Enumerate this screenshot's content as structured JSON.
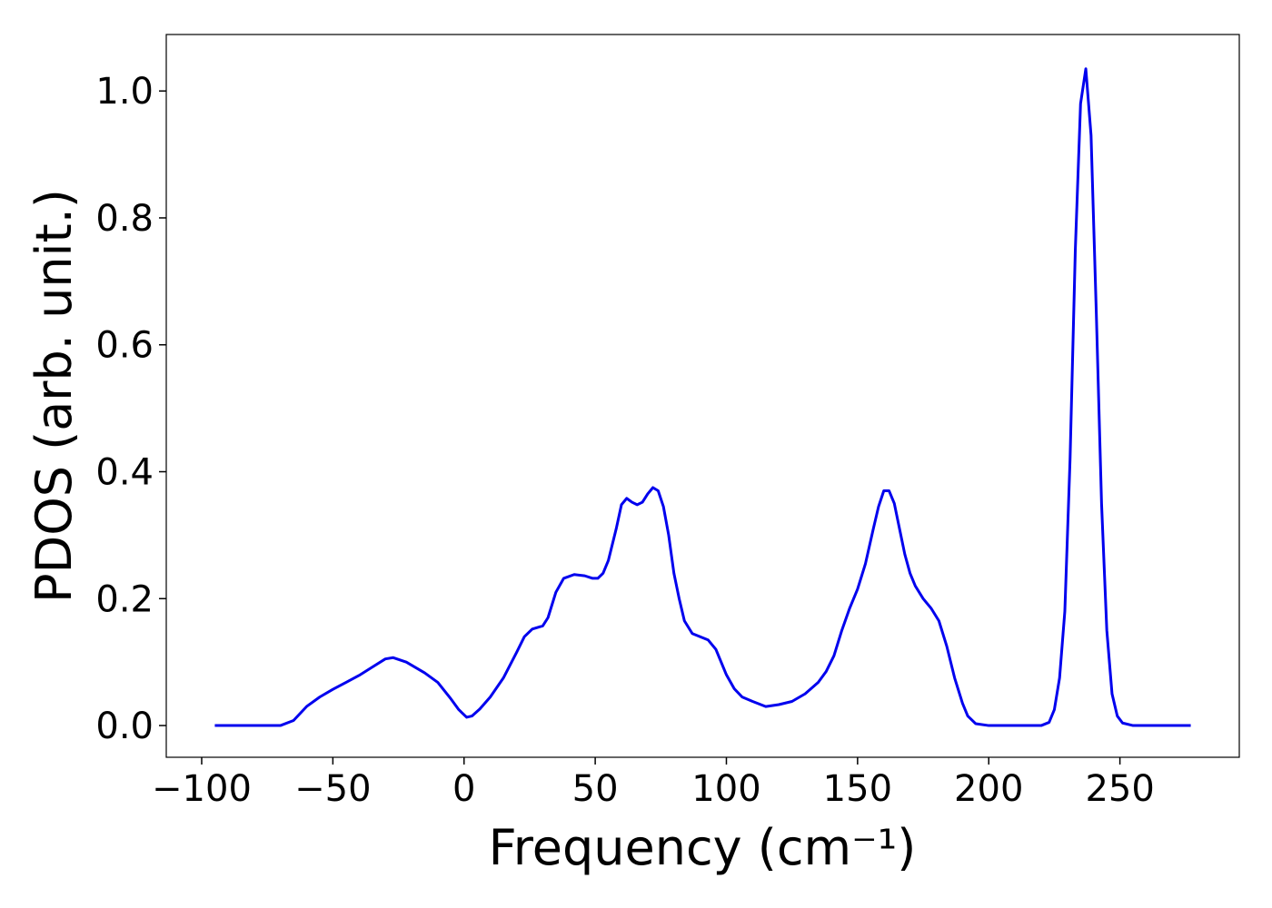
{
  "chart_data": {
    "type": "line",
    "xlabel": "Frequency (cm⁻¹)",
    "ylabel": "PDOS (arb. unit.)",
    "x": [
      -95,
      -70,
      -65,
      -60,
      -55,
      -50,
      -45,
      -40,
      -35,
      -30,
      -27,
      -22,
      -15,
      -10,
      -5,
      -2,
      1,
      3,
      6,
      10,
      15,
      20,
      23,
      26,
      30,
      32,
      35,
      38,
      42,
      46,
      49,
      51,
      53,
      55,
      58,
      60,
      62,
      64,
      66,
      68,
      70,
      72,
      74,
      76,
      78,
      80,
      82,
      84,
      87,
      90,
      93,
      96,
      100,
      103,
      106,
      110,
      115,
      120,
      125,
      130,
      135,
      138,
      141,
      144,
      147,
      150,
      153,
      156,
      158,
      160,
      162,
      164,
      166,
      168,
      170,
      172,
      175,
      178,
      181,
      184,
      187,
      190,
      192,
      195,
      200,
      220,
      223,
      225,
      227,
      229,
      231,
      233,
      235,
      237,
      239,
      241,
      243,
      245,
      247,
      249,
      251,
      255,
      277
    ],
    "series": [
      {
        "color": "#0000ee",
        "values": [
          0,
          0,
          0.008,
          0.03,
          0.045,
          0.057,
          0.068,
          0.079,
          0.092,
          0.105,
          0.107,
          0.1,
          0.083,
          0.068,
          0.042,
          0.025,
          0.013,
          0.015,
          0.026,
          0.045,
          0.075,
          0.115,
          0.14,
          0.152,
          0.157,
          0.17,
          0.21,
          0.232,
          0.238,
          0.236,
          0.232,
          0.232,
          0.24,
          0.26,
          0.31,
          0.348,
          0.358,
          0.352,
          0.348,
          0.352,
          0.365,
          0.375,
          0.37,
          0.345,
          0.3,
          0.24,
          0.2,
          0.165,
          0.145,
          0.14,
          0.135,
          0.12,
          0.08,
          0.058,
          0.045,
          0.038,
          0.03,
          0.033,
          0.038,
          0.05,
          0.068,
          0.085,
          0.11,
          0.15,
          0.185,
          0.215,
          0.255,
          0.31,
          0.345,
          0.37,
          0.37,
          0.35,
          0.31,
          0.27,
          0.24,
          0.22,
          0.2,
          0.185,
          0.165,
          0.125,
          0.075,
          0.035,
          0.015,
          0.003,
          0,
          0,
          0.005,
          0.025,
          0.075,
          0.18,
          0.42,
          0.75,
          0.98,
          1.035,
          0.93,
          0.65,
          0.35,
          0.15,
          0.05,
          0.015,
          0.004,
          0,
          0
        ]
      }
    ],
    "xlim": [
      -113.5,
      295.5
    ],
    "ylim": [
      -0.05,
      1.089
    ],
    "xticks": [
      {
        "value": -100,
        "label": "−100"
      },
      {
        "value": -50,
        "label": "−50"
      },
      0,
      50,
      100,
      150,
      200,
      250
    ],
    "yticks": [
      {
        "value": 0,
        "label": "0.0"
      },
      {
        "value": 0.2,
        "label": "0.2"
      },
      {
        "value": 0.4,
        "label": "0.4"
      },
      {
        "value": 0.6,
        "label": "0.6"
      },
      {
        "value": 0.8,
        "label": "0.8"
      },
      {
        "value": 1,
        "label": "1.0"
      }
    ]
  }
}
